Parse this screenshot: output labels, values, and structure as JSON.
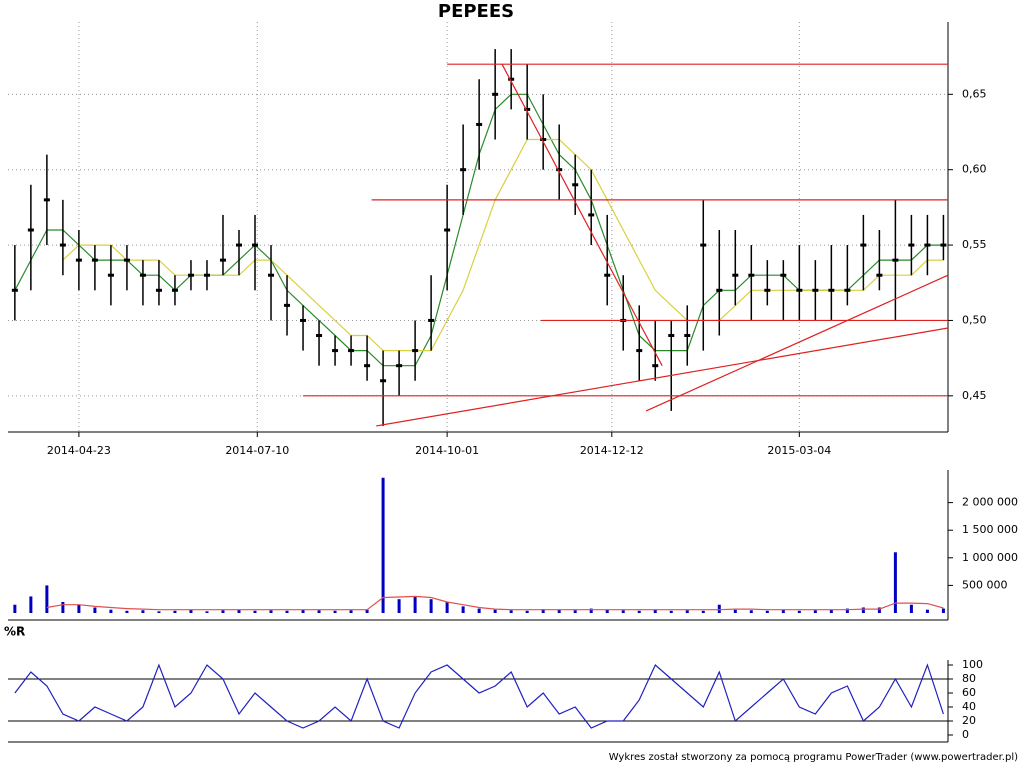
{
  "chart_data": [
    {
      "type": "candlestick",
      "title": "PEPEES",
      "x": [
        "2014-03-26",
        "2014-04-02",
        "2014-04-09",
        "2014-04-16",
        "2014-04-23",
        "2014-04-30",
        "2014-05-07",
        "2014-05-14",
        "2014-05-21",
        "2014-05-28",
        "2014-06-04",
        "2014-06-11",
        "2014-06-18",
        "2014-06-25",
        "2014-07-02",
        "2014-07-09",
        "2014-07-16",
        "2014-07-23",
        "2014-07-30",
        "2014-08-06",
        "2014-08-13",
        "2014-08-20",
        "2014-08-27",
        "2014-09-03",
        "2014-09-10",
        "2014-09-17",
        "2014-09-24",
        "2014-10-01",
        "2014-10-08",
        "2014-10-15",
        "2014-10-22",
        "2014-10-29",
        "2014-11-05",
        "2014-11-12",
        "2014-11-19",
        "2014-11-26",
        "2014-12-03",
        "2014-12-10",
        "2014-12-17",
        "2014-12-24",
        "2014-12-31",
        "2015-01-07",
        "2015-01-14",
        "2015-01-21",
        "2015-01-28",
        "2015-02-04",
        "2015-02-11",
        "2015-02-18",
        "2015-02-25",
        "2015-03-04",
        "2015-03-11",
        "2015-03-18",
        "2015-03-25",
        "2015-04-01",
        "2015-04-08",
        "2015-04-15",
        "2015-04-22",
        "2015-04-29",
        "2015-05-06"
      ],
      "close": [
        0.52,
        0.56,
        0.58,
        0.55,
        0.54,
        0.54,
        0.53,
        0.54,
        0.53,
        0.52,
        0.52,
        0.53,
        0.53,
        0.54,
        0.55,
        0.55,
        0.53,
        0.51,
        0.5,
        0.49,
        0.48,
        0.48,
        0.47,
        0.46,
        0.47,
        0.48,
        0.5,
        0.56,
        0.6,
        0.63,
        0.65,
        0.66,
        0.64,
        0.62,
        0.6,
        0.59,
        0.57,
        0.53,
        0.5,
        0.48,
        0.47,
        0.49,
        0.49,
        0.55,
        0.52,
        0.53,
        0.53,
        0.52,
        0.53,
        0.52,
        0.52,
        0.52,
        0.52,
        0.55,
        0.53,
        0.54,
        0.55,
        0.55,
        0.55
      ],
      "high": [
        0.55,
        0.59,
        0.61,
        0.58,
        0.56,
        0.55,
        0.55,
        0.55,
        0.54,
        0.54,
        0.53,
        0.54,
        0.54,
        0.57,
        0.56,
        0.57,
        0.55,
        0.53,
        0.51,
        0.5,
        0.49,
        0.49,
        0.49,
        0.48,
        0.48,
        0.5,
        0.53,
        0.59,
        0.63,
        0.66,
        0.68,
        0.68,
        0.67,
        0.65,
        0.63,
        0.61,
        0.6,
        0.57,
        0.53,
        0.51,
        0.5,
        0.5,
        0.51,
        0.58,
        0.56,
        0.56,
        0.55,
        0.54,
        0.54,
        0.55,
        0.54,
        0.55,
        0.55,
        0.57,
        0.56,
        0.58,
        0.57,
        0.57,
        0.57
      ],
      "low": [
        0.5,
        0.52,
        0.55,
        0.53,
        0.52,
        0.52,
        0.51,
        0.52,
        0.51,
        0.51,
        0.51,
        0.52,
        0.52,
        0.53,
        0.53,
        0.52,
        0.5,
        0.49,
        0.48,
        0.47,
        0.47,
        0.47,
        0.46,
        0.43,
        0.45,
        0.46,
        0.48,
        0.52,
        0.57,
        0.6,
        0.62,
        0.64,
        0.62,
        0.6,
        0.58,
        0.57,
        0.55,
        0.51,
        0.48,
        0.46,
        0.46,
        0.44,
        0.47,
        0.48,
        0.49,
        0.51,
        0.5,
        0.51,
        0.5,
        0.5,
        0.5,
        0.5,
        0.51,
        0.52,
        0.52,
        0.5,
        0.53,
        0.53,
        0.54
      ],
      "color": "#000000",
      "overlays": [
        {
          "color": "#2a8a2a",
          "values": [
            0.52,
            0.54,
            0.56,
            0.56,
            0.55,
            0.54,
            0.54,
            0.54,
            0.53,
            0.53,
            0.52,
            0.53,
            0.53,
            0.53,
            0.54,
            0.55,
            0.54,
            0.52,
            0.51,
            0.5,
            0.49,
            0.48,
            0.48,
            0.47,
            0.47,
            0.47,
            0.49,
            0.53,
            0.57,
            0.61,
            0.64,
            0.65,
            0.65,
            0.63,
            0.61,
            0.6,
            0.58,
            0.55,
            0.52,
            0.49,
            0.48,
            0.48,
            0.48,
            0.51,
            0.52,
            0.52,
            0.53,
            0.53,
            0.53,
            0.52,
            0.52,
            0.52,
            0.52,
            0.53,
            0.54,
            0.54,
            0.54,
            0.55,
            0.55
          ]
        },
        {
          "color": "#d8d040",
          "values": [
            null,
            null,
            null,
            0.54,
            0.55,
            0.55,
            0.55,
            0.54,
            0.54,
            0.54,
            0.53,
            0.53,
            0.53,
            0.53,
            0.53,
            0.54,
            0.54,
            0.53,
            0.52,
            0.51,
            0.5,
            0.49,
            0.49,
            0.48,
            0.48,
            0.48,
            0.48,
            0.5,
            0.52,
            0.55,
            0.58,
            0.6,
            0.62,
            0.62,
            0.62,
            0.61,
            0.6,
            0.58,
            0.56,
            0.54,
            0.52,
            0.51,
            0.5,
            0.5,
            0.5,
            0.51,
            0.52,
            0.52,
            0.52,
            0.52,
            0.52,
            0.52,
            0.52,
            0.52,
            0.53,
            0.53,
            0.53,
            0.54,
            0.54
          ]
        }
      ],
      "lines_color": "#e02020",
      "lines": [
        {
          "x": [
            "2014-10-01",
            "2015-05-08"
          ],
          "y": [
            0.67,
            0.67
          ]
        },
        {
          "x": [
            "2014-08-29",
            "2015-05-08"
          ],
          "y": [
            0.58,
            0.58
          ]
        },
        {
          "x": [
            "2014-11-11",
            "2015-05-08"
          ],
          "y": [
            0.5,
            0.5
          ]
        },
        {
          "x": [
            "2014-07-30",
            "2015-05-08"
          ],
          "y": [
            0.45,
            0.45
          ]
        },
        {
          "x": [
            "2014-10-25",
            "2015-01-03"
          ],
          "y": [
            0.67,
            0.47
          ]
        },
        {
          "x": [
            "2014-08-31",
            "2015-05-08"
          ],
          "y": [
            0.43,
            0.495
          ]
        },
        {
          "x": [
            "2014-12-27",
            "2015-05-08"
          ],
          "y": [
            0.44,
            0.53
          ]
        }
      ],
      "xlim": [
        "2014-03-23",
        "2015-05-08"
      ],
      "xticks": [
        "2014-04-23",
        "2014-07-10",
        "2014-10-01",
        "2014-12-12",
        "2015-03-04"
      ],
      "ylim": [
        0.426,
        0.692
      ],
      "yticks": [
        {
          "value": 0.45,
          "label": "0,45"
        },
        {
          "value": 0.5,
          "label": "0,50"
        },
        {
          "value": 0.55,
          "label": "0,55"
        },
        {
          "value": 0.6,
          "label": "0,60"
        },
        {
          "value": 0.65,
          "label": "0,65"
        }
      ],
      "grid": true
    },
    {
      "type": "bar",
      "color": "#0000c0",
      "values": [
        150000,
        300000,
        500000,
        200000,
        150000,
        100000,
        60000,
        40000,
        50000,
        30000,
        40000,
        60000,
        30000,
        50000,
        60000,
        40000,
        50000,
        40000,
        60000,
        50000,
        40000,
        50000,
        60000,
        2450000,
        250000,
        300000,
        250000,
        200000,
        120000,
        80000,
        60000,
        50000,
        40000,
        70000,
        60000,
        50000,
        80000,
        60000,
        50000,
        40000,
        60000,
        40000,
        50000,
        40000,
        150000,
        60000,
        50000,
        40000,
        60000,
        40000,
        50000,
        60000,
        80000,
        100000,
        100000,
        1100000,
        150000,
        60000,
        80000
      ],
      "average": {
        "color": "#e05050",
        "values": [
          null,
          null,
          100000,
          150000,
          150000,
          120000,
          100000,
          80000,
          70000,
          60000,
          60000,
          60000,
          60000,
          60000,
          60000,
          60000,
          60000,
          60000,
          60000,
          60000,
          60000,
          60000,
          60000,
          280000,
          290000,
          300000,
          280000,
          200000,
          150000,
          100000,
          70000,
          60000,
          60000,
          60000,
          60000,
          60000,
          60000,
          60000,
          60000,
          60000,
          60000,
          60000,
          60000,
          60000,
          60000,
          70000,
          70000,
          60000,
          60000,
          60000,
          60000,
          60000,
          60000,
          70000,
          70000,
          180000,
          180000,
          170000,
          90000
        ]
      },
      "ylim": [
        0,
        2500000
      ],
      "yticks": [
        {
          "value": 500000,
          "label": "500 000"
        },
        {
          "value": 1000000,
          "label": "1 000 000"
        },
        {
          "value": 1500000,
          "label": "1 500 000"
        },
        {
          "value": 2000000,
          "label": "2 000 000"
        }
      ]
    },
    {
      "type": "line",
      "title": "%R",
      "color": "#2020c0",
      "values": [
        60,
        90,
        70,
        30,
        20,
        40,
        30,
        20,
        40,
        100,
        40,
        60,
        100,
        80,
        30,
        60,
        40,
        20,
        10,
        20,
        40,
        20,
        80,
        20,
        10,
        60,
        90,
        100,
        80,
        60,
        70,
        90,
        40,
        60,
        30,
        40,
        10,
        20,
        20,
        50,
        100,
        80,
        60,
        40,
        90,
        20,
        40,
        60,
        80,
        40,
        30,
        60,
        70,
        20,
        40,
        80,
        40,
        100,
        30
      ],
      "levels": [
        20,
        80
      ],
      "ylim": [
        0,
        100
      ],
      "yticks": [
        0,
        20,
        40,
        60,
        80,
        100
      ]
    }
  ],
  "footer": "Wykres został stworzony za pomocą programu PowerTrader (www.powertrader.pl)"
}
